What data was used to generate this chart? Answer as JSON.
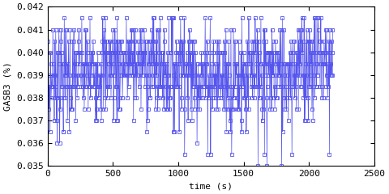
{
  "xlabel": "time (s)",
  "ylabel": "GASB3 (%)",
  "xlim": [
    0,
    2500
  ],
  "ylim": [
    0.035,
    0.042
  ],
  "yticks": [
    0.035,
    0.036,
    0.037,
    0.038,
    0.039,
    0.04,
    0.041,
    0.042
  ],
  "xticks": [
    0,
    500,
    1000,
    1500,
    2000,
    2500
  ],
  "line_color": "#5555ee",
  "marker": "s",
  "markersize": 2.5,
  "linewidth": 0.5,
  "bg_color": "#ffffff",
  "seed": 7,
  "n_points": 800,
  "x_max": 2180,
  "quantize_step": 0.0005
}
